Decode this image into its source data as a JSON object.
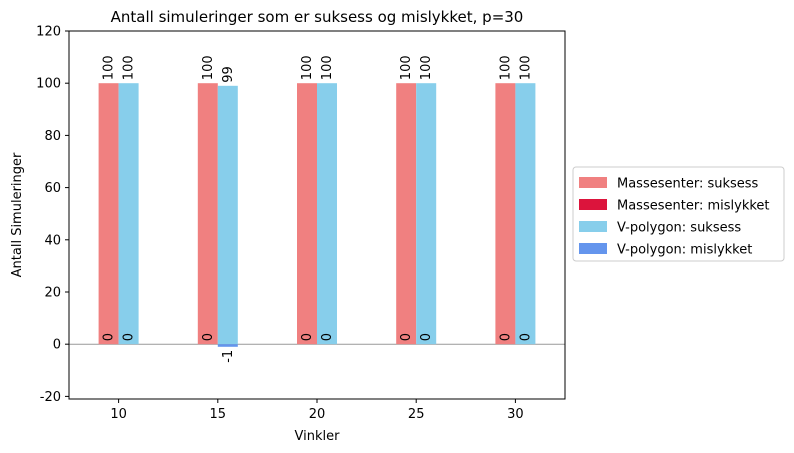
{
  "chart_data": {
    "type": "bar",
    "title": "Antall simuleringer som er suksess og mislykket, p=30",
    "xlabel": "Vinkler",
    "ylabel": "Antall Simuleringer",
    "categories": [
      "10",
      "15",
      "20",
      "25",
      "30"
    ],
    "ylim": [
      -21,
      120
    ],
    "yticks": [
      -20,
      0,
      20,
      40,
      60,
      80,
      100,
      120
    ],
    "grid": false,
    "legend_placement": "center-right-outside",
    "series": [
      {
        "name": "Massesenter: suksess",
        "color": "#f08080",
        "values": [
          100,
          100,
          100,
          100,
          100
        ]
      },
      {
        "name": "Massesenter: mislykket",
        "color": "#dc143c",
        "values": [
          0,
          0,
          0,
          0,
          0
        ]
      },
      {
        "name": "V-polygon: suksess",
        "color": "#87ceeb",
        "values": [
          100,
          99,
          100,
          100,
          100
        ]
      },
      {
        "name": "V-polygon: mislykket",
        "color": "#6495ed",
        "values": [
          0,
          -1,
          0,
          0,
          0
        ]
      }
    ],
    "bar_annotations": [
      {
        "group": "Massesenter",
        "success_series": 0,
        "failure_series": 1
      },
      {
        "group": "V-polygon",
        "success_series": 2,
        "failure_series": 3
      }
    ]
  }
}
